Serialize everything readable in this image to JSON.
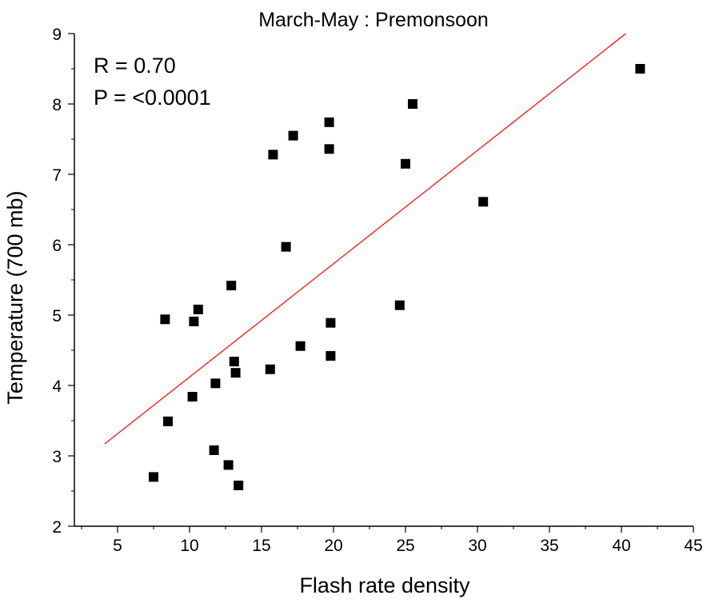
{
  "chart_data": {
    "type": "scatter",
    "title": "March-May : Premonsoon",
    "xlabel": "Flash rate density",
    "ylabel": "Temperature (700 mb)",
    "xlim": [
      2,
      45
    ],
    "ylim": [
      2,
      9
    ],
    "x_ticks": [
      5,
      10,
      15,
      20,
      25,
      30,
      35,
      40,
      45
    ],
    "x_tick_labels": [
      "5",
      "10",
      "15",
      "20",
      "25",
      "30",
      "35",
      "40",
      "45"
    ],
    "y_ticks": [
      2,
      3,
      4,
      5,
      6,
      7,
      8,
      9
    ],
    "y_tick_labels": [
      "2",
      "3",
      "4",
      "5",
      "6",
      "7",
      "8",
      "9"
    ],
    "annotations": [
      {
        "text": "R = 0.70"
      },
      {
        "text": "P = <0.0001"
      }
    ],
    "series": [
      {
        "marker": "square",
        "color": "#000000",
        "points": [
          {
            "x": 7.5,
            "y": 2.7
          },
          {
            "x": 8.3,
            "y": 4.94
          },
          {
            "x": 8.5,
            "y": 3.49
          },
          {
            "x": 10.2,
            "y": 3.84
          },
          {
            "x": 10.3,
            "y": 4.91
          },
          {
            "x": 10.6,
            "y": 5.08
          },
          {
            "x": 11.7,
            "y": 3.08
          },
          {
            "x": 11.8,
            "y": 4.03
          },
          {
            "x": 12.7,
            "y": 2.87
          },
          {
            "x": 12.9,
            "y": 5.42
          },
          {
            "x": 13.1,
            "y": 4.34
          },
          {
            "x": 13.2,
            "y": 4.18
          },
          {
            "x": 13.4,
            "y": 2.58
          },
          {
            "x": 15.6,
            "y": 4.23
          },
          {
            "x": 15.8,
            "y": 7.28
          },
          {
            "x": 16.7,
            "y": 5.97
          },
          {
            "x": 17.2,
            "y": 7.55
          },
          {
            "x": 17.7,
            "y": 4.56
          },
          {
            "x": 19.7,
            "y": 7.36
          },
          {
            "x": 19.7,
            "y": 7.74
          },
          {
            "x": 19.8,
            "y": 4.42
          },
          {
            "x": 19.8,
            "y": 4.89
          },
          {
            "x": 24.6,
            "y": 5.14
          },
          {
            "x": 25.0,
            "y": 7.15
          },
          {
            "x": 25.5,
            "y": 8.0
          },
          {
            "x": 30.4,
            "y": 6.61
          },
          {
            "x": 41.3,
            "y": 8.5
          }
        ]
      }
    ],
    "fit_line": {
      "type": "linear",
      "color": "#ff0000",
      "start": {
        "x": 4.1,
        "y": 3.17
      },
      "end": {
        "x": 40.3,
        "y": 9.0
      }
    }
  }
}
